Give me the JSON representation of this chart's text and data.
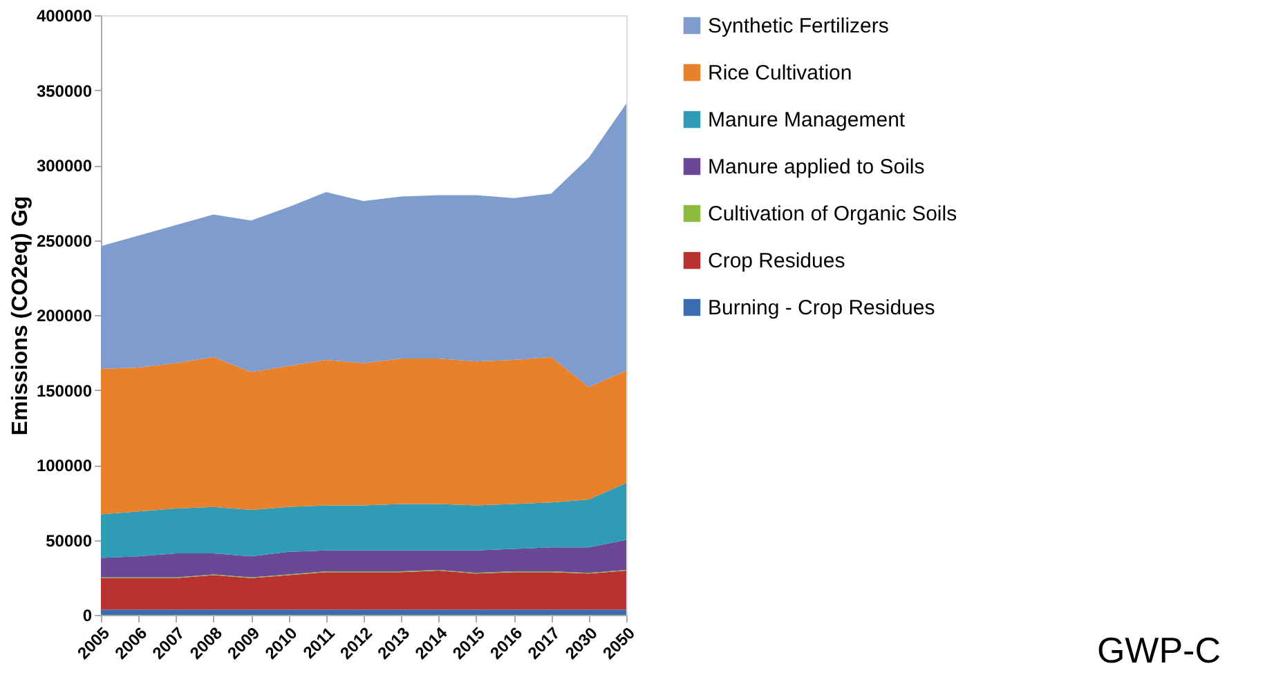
{
  "chart_data": {
    "type": "area",
    "stacked": true,
    "ylabel": "Emissions (CO2eq) Gg",
    "categories": [
      "2005",
      "2006",
      "2007",
      "2008",
      "2009",
      "2010",
      "2011",
      "2012",
      "2013",
      "2014",
      "2015",
      "2016",
      "2017",
      "2030",
      "2050"
    ],
    "ylim": [
      0,
      400000
    ],
    "yticks": [
      0,
      50000,
      100000,
      150000,
      200000,
      250000,
      300000,
      350000,
      400000
    ],
    "grid": false,
    "legend": "right",
    "series": [
      {
        "name": "Burning - Crop Residues",
        "color": "#3a6db0",
        "values": [
          3500,
          3500,
          3500,
          3500,
          3500,
          3500,
          3500,
          3500,
          3500,
          3500,
          3500,
          3500,
          3500,
          3500,
          3500
        ]
      },
      {
        "name": "Crop Residues",
        "color": "#b83232",
        "values": [
          21000,
          21000,
          21000,
          23000,
          21000,
          23000,
          25000,
          25000,
          25000,
          26000,
          24000,
          25000,
          25000,
          24000,
          26000
        ]
      },
      {
        "name": "Cultivation of Organic Soils",
        "color": "#8dbb3e",
        "values": [
          500,
          500,
          500,
          500,
          500,
          500,
          500,
          500,
          500,
          500,
          500,
          500,
          500,
          500,
          500
        ]
      },
      {
        "name": "Manure applied to Soils",
        "color": "#6b4896",
        "values": [
          13000,
          14000,
          16000,
          14000,
          14000,
          15000,
          14000,
          14000,
          14000,
          13000,
          15000,
          15000,
          16000,
          17000,
          20000
        ]
      },
      {
        "name": "Manure Management",
        "color": "#2f9bb5",
        "values": [
          29000,
          30000,
          30000,
          31000,
          31000,
          30000,
          30000,
          30000,
          31000,
          31000,
          30000,
          30000,
          30000,
          32000,
          38000
        ]
      },
      {
        "name": "Rice Cultivation",
        "color": "#e8812a",
        "values": [
          97000,
          96000,
          97000,
          100000,
          92000,
          94000,
          97000,
          95000,
          97000,
          97000,
          96000,
          96000,
          97000,
          75000,
          75000
        ]
      },
      {
        "name": "Synthetic Fertilizers",
        "color": "#7f9ccf",
        "values": [
          82000,
          88000,
          92000,
          95000,
          101000,
          106000,
          112000,
          108000,
          108000,
          109000,
          111000,
          108000,
          109000,
          153000,
          178000
        ]
      }
    ],
    "annotations": [
      "GWP-C"
    ]
  }
}
